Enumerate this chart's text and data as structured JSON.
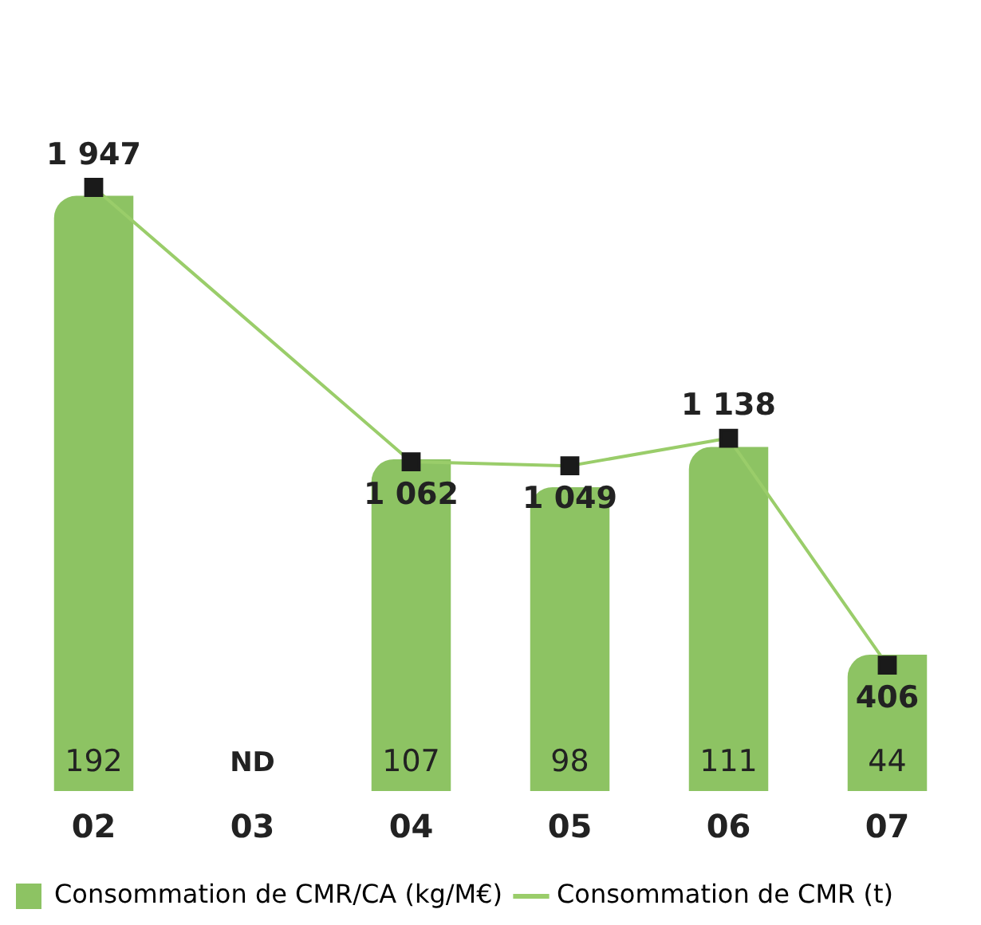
{
  "chart_data": {
    "type": "bar",
    "categories": [
      "02",
      "03",
      "04",
      "05",
      "06",
      "07"
    ],
    "series": [
      {
        "name": "Consommation de CMR/CA (kg/M€)",
        "color": "#8dc363",
        "values": [
          192,
          null,
          107,
          98,
          111,
          44
        ],
        "value_labels": [
          "192",
          null,
          "107",
          "98",
          "111",
          "44"
        ]
      },
      {
        "name": "Consommation de CMR (t)",
        "type": "line",
        "axis": "y2",
        "color": "#9acd6a",
        "values": [
          1947,
          null,
          1062,
          1049,
          1138,
          406
        ],
        "value_labels": [
          "1 947",
          null,
          "1 062",
          "1 049",
          "1 138",
          "406"
        ]
      }
    ],
    "tick_labels": "x",
    "grid": false,
    "marker": "square",
    "line_style": "solid",
    "legend": "bottom left",
    "annotations": [
      "ND"
    ]
  }
}
